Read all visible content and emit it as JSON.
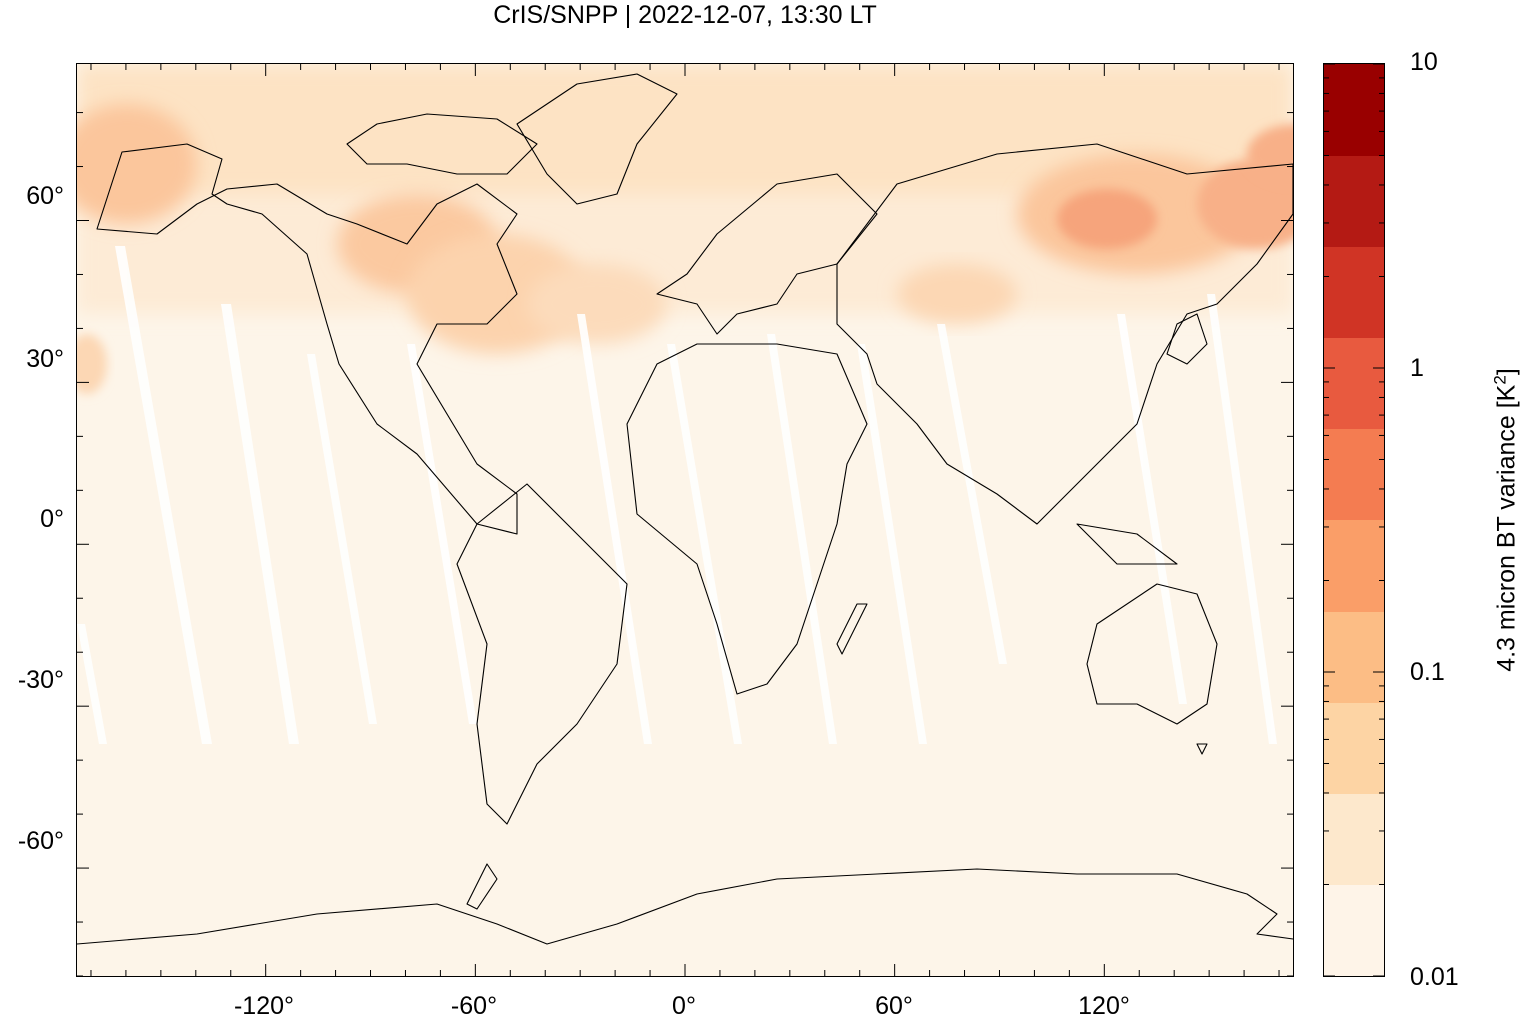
{
  "title": "CrIS/SNPP | 2022-12-07, 13:30 LT",
  "map": {
    "projection": "equirectangular",
    "lon_range": [
      -174,
      174
    ],
    "lat_range": [
      -80,
      89
    ],
    "x_ticks": [
      {
        "value": -120,
        "label": "-120°"
      },
      {
        "value": -60,
        "label": "-60°"
      },
      {
        "value": 0,
        "label": "0°"
      },
      {
        "value": 60,
        "label": "60°"
      },
      {
        "value": 120,
        "label": "120°"
      }
    ],
    "y_ticks": [
      {
        "value": 60,
        "label": "60°"
      },
      {
        "value": 30,
        "label": "30°"
      },
      {
        "value": 0,
        "label": "0°"
      },
      {
        "value": -30,
        "label": "-30°"
      },
      {
        "value": -60,
        "label": "-60°"
      }
    ],
    "background_color": "#fdf5e9",
    "features": "coastlines",
    "data_gaps": "diagonal orbit swath gaps (white) across tropics"
  },
  "colorbar": {
    "title": "4.3 micron BT variance [K",
    "title_sup": "2",
    "title_end": "]",
    "scale": "log",
    "range": [
      0.01,
      10
    ],
    "labels": [
      {
        "value": 10,
        "text": "10"
      },
      {
        "value": 1,
        "text": "1"
      },
      {
        "value": 0.1,
        "text": "0.1"
      },
      {
        "value": 0.01,
        "text": "0.01"
      }
    ],
    "colors": [
      "#fef4e8",
      "#fde8cc",
      "#fdd4a4",
      "#fcbd85",
      "#fa9e68",
      "#f47c51",
      "#e85a3f",
      "#d03425",
      "#b41a14",
      "#990000"
    ]
  }
}
